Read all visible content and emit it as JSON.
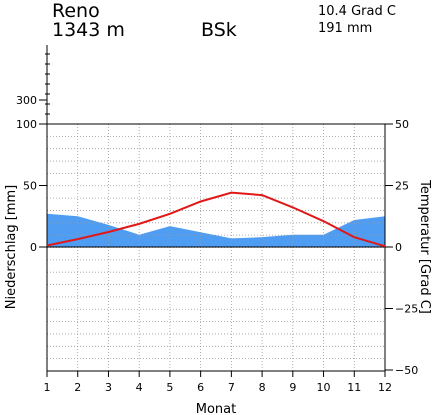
{
  "header": {
    "station": "Reno",
    "elevation": "1343 m",
    "climate_class": "BSk",
    "mean_temperature": "10.4 Grad C",
    "annual_precipitation": "191 mm"
  },
  "chart_data": {
    "type": "line",
    "xlabel": "Monat",
    "ylabel_left": "Niederschlag [mm]",
    "ylabel_right": "Temperatur [Grad C]",
    "x": [
      1,
      2,
      3,
      4,
      5,
      6,
      7,
      8,
      9,
      10,
      11,
      12
    ],
    "x_tick_labels": [
      "1",
      "2",
      "3",
      "4",
      "5",
      "6",
      "7",
      "8",
      "9",
      "10",
      "11",
      "12"
    ],
    "left_axis": {
      "range": [
        -100,
        300
      ],
      "ticks": [
        0,
        50,
        100,
        300
      ],
      "tick_labels": [
        "0",
        "50",
        "100",
        "300"
      ]
    },
    "right_axis": {
      "range": [
        -50,
        50
      ],
      "ticks": [
        -50,
        -25,
        0,
        25,
        50
      ],
      "tick_labels": [
        "−50",
        "−25",
        "0",
        "25",
        "50"
      ]
    },
    "series": [
      {
        "kind": "area",
        "axis": "left",
        "color": "#4f9df2",
        "values": [
          27,
          25,
          18,
          10,
          17,
          12,
          7,
          8,
          10,
          10,
          22,
          25
        ]
      },
      {
        "kind": "line",
        "axis": "right",
        "color": "#e01818",
        "values": [
          0.6,
          3.2,
          6.1,
          9.4,
          13.5,
          18.5,
          22.1,
          21.1,
          16.1,
          10.5,
          4.0,
          0.3
        ]
      }
    ],
    "grid": true
  }
}
